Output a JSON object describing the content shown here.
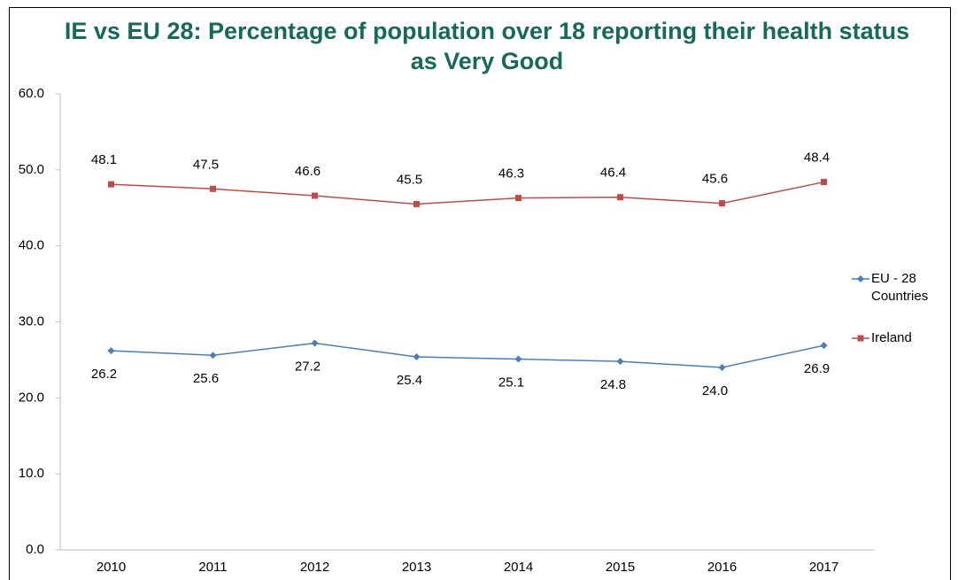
{
  "chart_data": {
    "type": "line",
    "title": "IE vs EU 28: Percentage of population over 18 reporting their health status as Very Good",
    "categories": [
      "2010",
      "2011",
      "2012",
      "2013",
      "2014",
      "2015",
      "2016",
      "2017"
    ],
    "series": [
      {
        "name": "EU - 28 Countries",
        "color": "#4a7ebb",
        "marker": "diamond",
        "values": [
          26.2,
          25.6,
          27.2,
          25.4,
          25.1,
          24.8,
          24.0,
          26.9
        ],
        "value_labels": [
          "26.2",
          "25.6",
          "27.2",
          "25.4",
          "25.1",
          "24.8",
          "24.0",
          "26.9"
        ]
      },
      {
        "name": "Ireland",
        "color": "#be4b48",
        "marker": "square",
        "values": [
          48.1,
          47.5,
          46.6,
          45.5,
          46.3,
          46.4,
          45.6,
          48.4
        ]
      }
    ],
    "ylim": [
      0,
      60
    ],
    "yticks": [
      {
        "value": 0,
        "label": "0.0"
      },
      {
        "value": 10,
        "label": "10.0"
      },
      {
        "value": 20,
        "label": "20.0"
      },
      {
        "value": 30,
        "label": "30.0"
      },
      {
        "value": 40,
        "label": "40.0"
      },
      {
        "value": 50,
        "label": "50.0"
      },
      {
        "value": 60,
        "label": "60.0"
      }
    ],
    "grid": false,
    "legend": "right"
  }
}
